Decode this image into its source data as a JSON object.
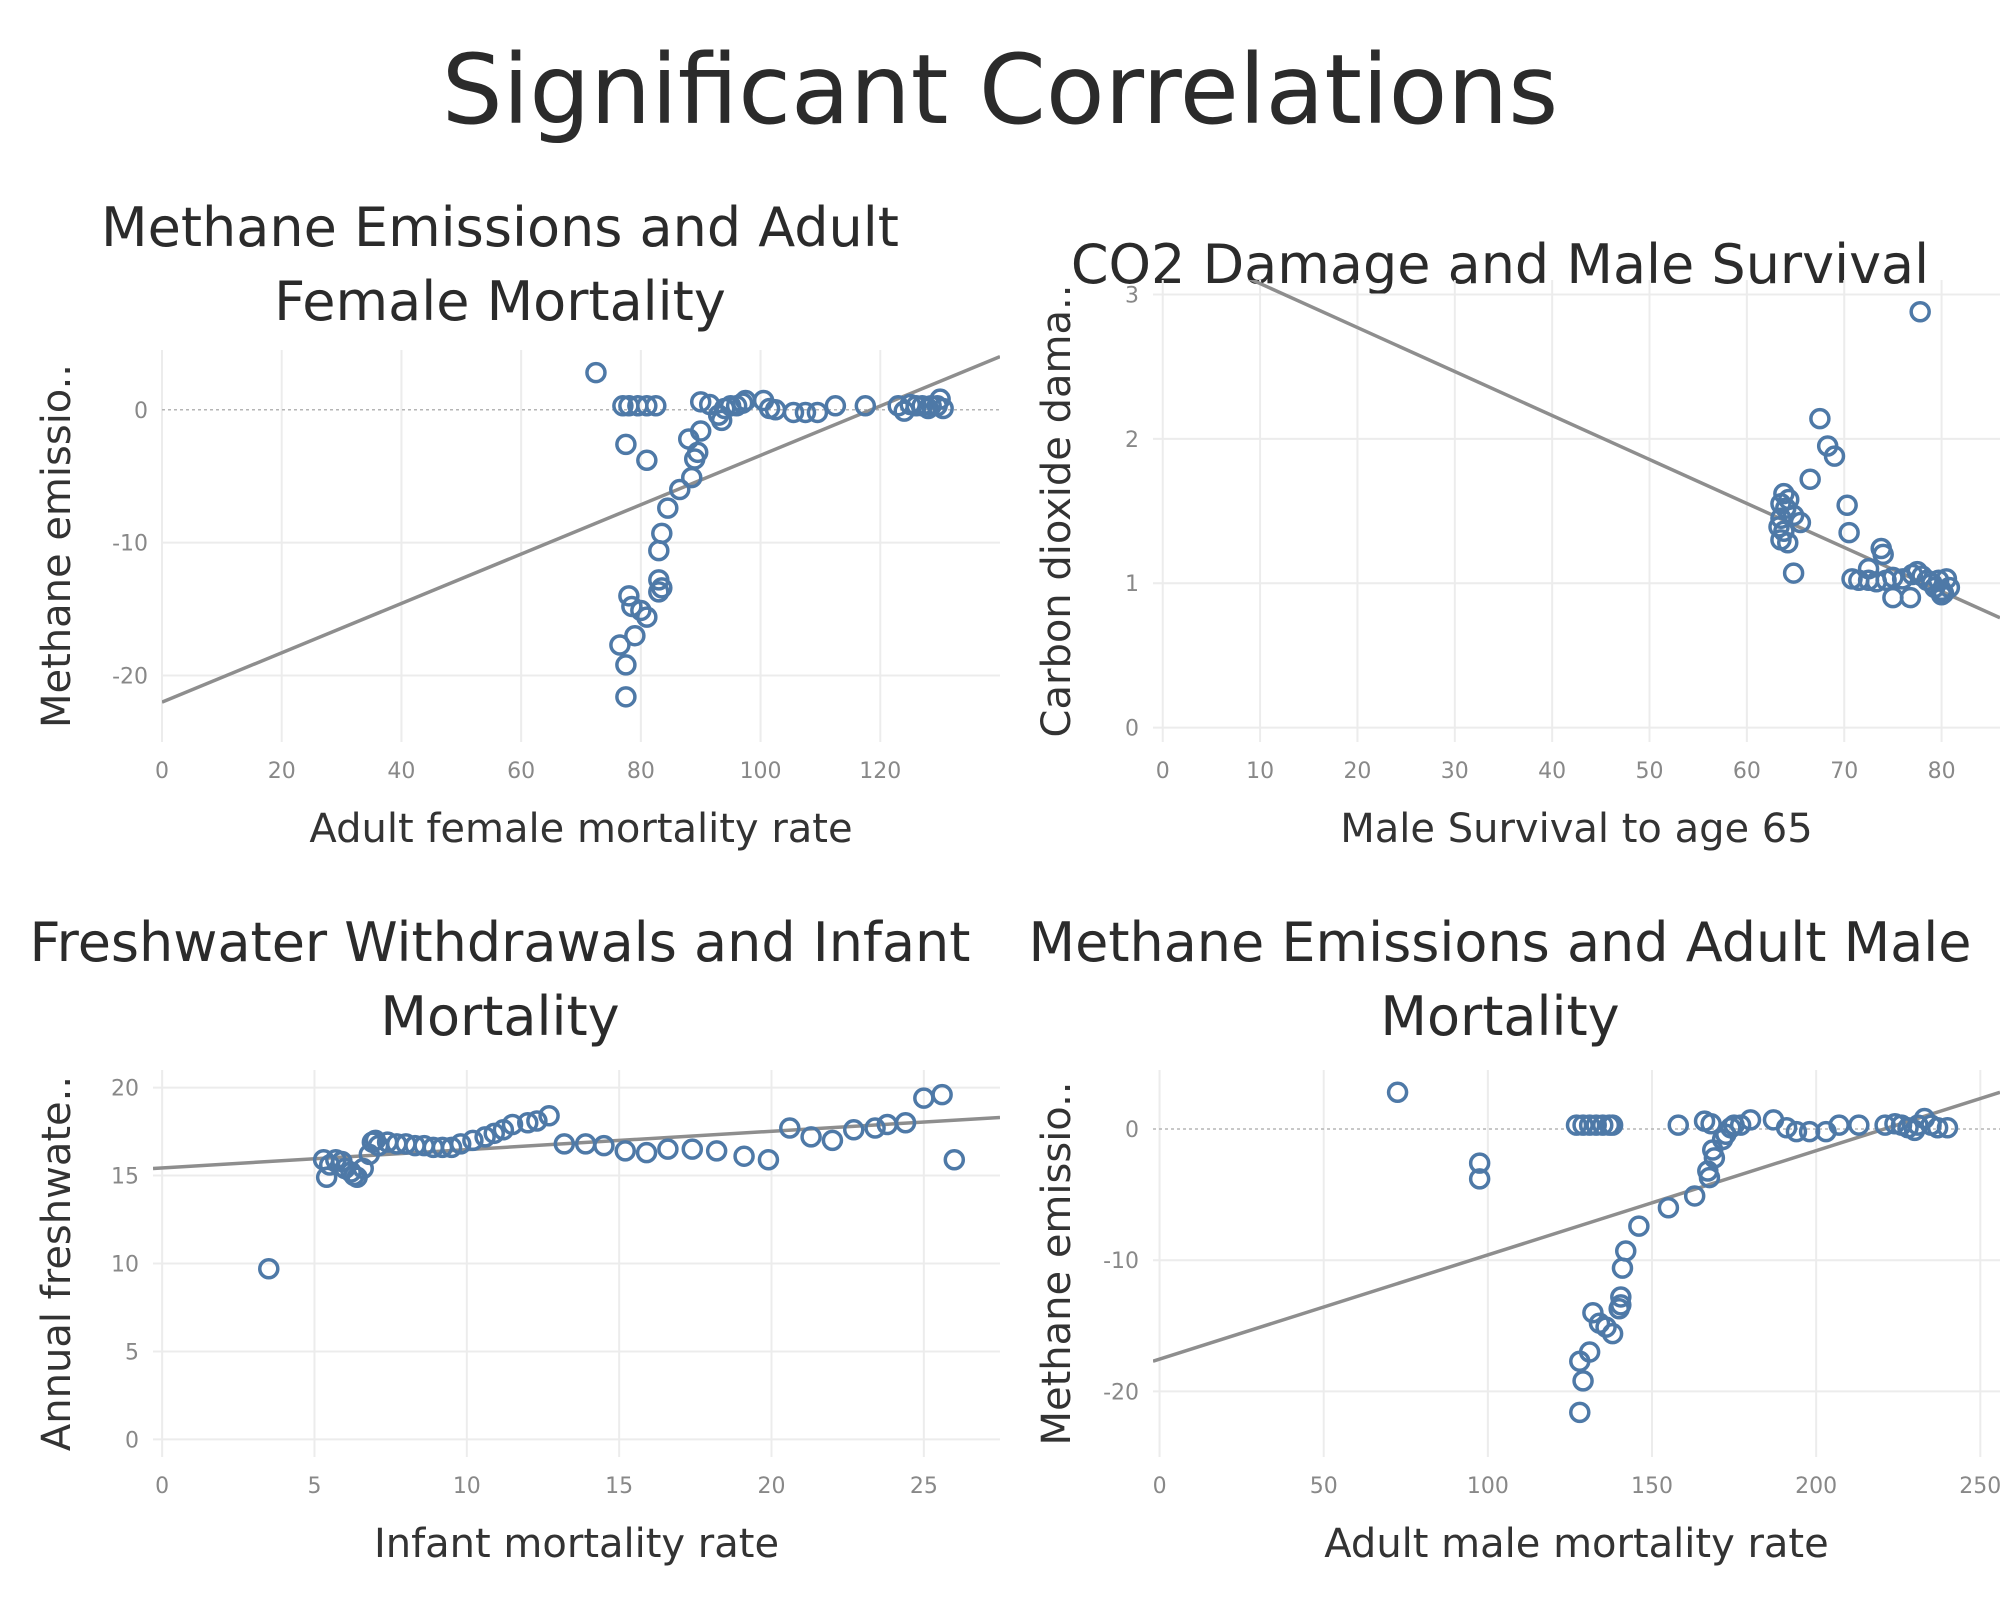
{
  "title": "Significant Correlations",
  "colors": {
    "point": "#4e79a7",
    "trend": "#8e8e8e",
    "grid": "#ececec",
    "text": "#333333"
  },
  "chart_data": [
    {
      "type": "scatter",
      "title": "Methane Emissions and Adult Female Mortality",
      "xlabel": "Adult female mortality rate",
      "ylabel": "Methane emissio..",
      "xlim": [
        0,
        140
      ],
      "ylim": [
        -25,
        4.5
      ],
      "xticks": [
        0,
        20,
        40,
        60,
        80,
        100,
        120
      ],
      "yticks": [
        0,
        -10,
        -20
      ],
      "zero_line": true,
      "trend": {
        "x": [
          0,
          140
        ],
        "y": [
          -22.0,
          4.0
        ]
      },
      "points": [
        [
          72.5,
          2.8
        ],
        [
          77.0,
          0.3
        ],
        [
          78.0,
          0.3
        ],
        [
          79.5,
          0.3
        ],
        [
          81.0,
          0.3
        ],
        [
          82.5,
          0.3
        ],
        [
          77.5,
          -2.6
        ],
        [
          81.0,
          -3.8
        ],
        [
          88.0,
          -2.2
        ],
        [
          89.0,
          -3.7
        ],
        [
          89.5,
          -3.2
        ],
        [
          90.0,
          -1.6
        ],
        [
          88.5,
          -5.1
        ],
        [
          86.5,
          -6.0
        ],
        [
          84.5,
          -7.4
        ],
        [
          83.5,
          -9.3
        ],
        [
          83.0,
          -10.6
        ],
        [
          83.0,
          -12.8
        ],
        [
          83.5,
          -13.4
        ],
        [
          83.0,
          -13.7
        ],
        [
          78.0,
          -14.0
        ],
        [
          78.5,
          -14.8
        ],
        [
          80.0,
          -15.1
        ],
        [
          81.0,
          -15.6
        ],
        [
          79.0,
          -17.0
        ],
        [
          76.5,
          -17.7
        ],
        [
          77.5,
          -19.2
        ],
        [
          77.5,
          -21.6
        ],
        [
          90.0,
          0.6
        ],
        [
          91.5,
          0.4
        ],
        [
          93.0,
          -0.4
        ],
        [
          93.5,
          -0.8
        ],
        [
          94.0,
          0.1
        ],
        [
          95.0,
          0.3
        ],
        [
          96.0,
          0.3
        ],
        [
          97.0,
          0.5
        ],
        [
          97.5,
          0.7
        ],
        [
          100.5,
          0.7
        ],
        [
          101.5,
          0.1
        ],
        [
          102.5,
          0.0
        ],
        [
          105.5,
          -0.2
        ],
        [
          107.5,
          -0.2
        ],
        [
          109.5,
          -0.2
        ],
        [
          112.5,
          0.3
        ],
        [
          117.5,
          0.3
        ],
        [
          123.0,
          0.3
        ],
        [
          124.0,
          -0.1
        ],
        [
          125.0,
          0.4
        ],
        [
          126.0,
          0.3
        ],
        [
          127.0,
          0.3
        ],
        [
          128.0,
          0.1
        ],
        [
          128.5,
          0.3
        ],
        [
          129.5,
          0.3
        ],
        [
          130.0,
          0.8
        ],
        [
          130.5,
          0.1
        ]
      ]
    },
    {
      "type": "scatter",
      "title": "CO2 Damage and Male Survival",
      "xlabel": "Male Survival to age 65",
      "ylabel": "Carbon dioxide dama..",
      "xlim": [
        -1,
        86
      ],
      "ylim": [
        -0.1,
        3.1
      ],
      "xticks": [
        0,
        10,
        20,
        30,
        40,
        50,
        60,
        70,
        80
      ],
      "yticks": [
        0,
        1,
        2,
        3
      ],
      "zero_line": false,
      "trend": {
        "x": [
          0,
          86
        ],
        "y": [
          3.38,
          0.76
        ]
      },
      "points": [
        [
          77.8,
          2.88
        ],
        [
          67.5,
          2.14
        ],
        [
          68.3,
          1.95
        ],
        [
          69.0,
          1.88
        ],
        [
          66.5,
          1.72
        ],
        [
          70.3,
          1.54
        ],
        [
          70.5,
          1.35
        ],
        [
          73.8,
          1.24
        ],
        [
          74.0,
          1.2
        ],
        [
          72.5,
          1.1
        ],
        [
          63.8,
          1.62
        ],
        [
          64.3,
          1.58
        ],
        [
          63.5,
          1.55
        ],
        [
          64.0,
          1.52
        ],
        [
          64.8,
          1.47
        ],
        [
          65.5,
          1.42
        ],
        [
          63.5,
          1.45
        ],
        [
          63.3,
          1.39
        ],
        [
          63.8,
          1.36
        ],
        [
          63.5,
          1.3
        ],
        [
          64.2,
          1.28
        ],
        [
          64.8,
          1.07
        ],
        [
          70.8,
          1.03
        ],
        [
          71.5,
          1.02
        ],
        [
          72.5,
          1.02
        ],
        [
          73.3,
          1.01
        ],
        [
          74.3,
          1.02
        ],
        [
          75.0,
          1.04
        ],
        [
          76.0,
          1.03
        ],
        [
          77.0,
          1.06
        ],
        [
          77.5,
          1.08
        ],
        [
          78.0,
          1.05
        ],
        [
          78.5,
          1.02
        ],
        [
          79.0,
          1.0
        ],
        [
          79.3,
          0.97
        ],
        [
          79.7,
          1.02
        ],
        [
          80.0,
          0.95
        ],
        [
          80.2,
          0.93
        ],
        [
          80.5,
          1.03
        ],
        [
          80.8,
          0.97
        ],
        [
          80.0,
          0.92
        ],
        [
          75.0,
          0.9
        ],
        [
          76.8,
          0.9
        ]
      ]
    },
    {
      "type": "scatter",
      "title": "Freshwater Withdrawals and Infant Mortality",
      "xlabel": "Infant mortality rate",
      "ylabel": "Annual freshwate..",
      "xlim": [
        -0.3,
        27.5
      ],
      "ylim": [
        -1.0,
        21.0
      ],
      "xticks": [
        0,
        5,
        10,
        15,
        20,
        25
      ],
      "yticks": [
        0,
        5,
        10,
        15,
        20
      ],
      "zero_line": false,
      "trend": {
        "x": [
          -0.3,
          27.5
        ],
        "y": [
          15.4,
          18.3
        ]
      },
      "points": [
        [
          3.5,
          9.7
        ],
        [
          5.3,
          15.9
        ],
        [
          5.5,
          15.6
        ],
        [
          5.7,
          15.9
        ],
        [
          5.9,
          15.8
        ],
        [
          6.0,
          15.4
        ],
        [
          6.2,
          15.2
        ],
        [
          6.3,
          15.0
        ],
        [
          5.4,
          14.9
        ],
        [
          6.4,
          14.9
        ],
        [
          6.6,
          15.4
        ],
        [
          6.8,
          16.2
        ],
        [
          6.9,
          16.9
        ],
        [
          7.1,
          16.7
        ],
        [
          7.0,
          17.0
        ],
        [
          7.4,
          16.9
        ],
        [
          7.7,
          16.8
        ],
        [
          8.0,
          16.8
        ],
        [
          8.3,
          16.7
        ],
        [
          8.6,
          16.7
        ],
        [
          8.9,
          16.6
        ],
        [
          9.2,
          16.6
        ],
        [
          9.5,
          16.6
        ],
        [
          9.8,
          16.8
        ],
        [
          10.2,
          17.0
        ],
        [
          10.6,
          17.2
        ],
        [
          10.9,
          17.4
        ],
        [
          11.2,
          17.6
        ],
        [
          11.5,
          17.9
        ],
        [
          12.0,
          18.0
        ],
        [
          12.3,
          18.1
        ],
        [
          12.7,
          18.4
        ],
        [
          13.2,
          16.8
        ],
        [
          13.9,
          16.8
        ],
        [
          14.5,
          16.7
        ],
        [
          15.2,
          16.4
        ],
        [
          15.9,
          16.3
        ],
        [
          16.6,
          16.5
        ],
        [
          17.4,
          16.5
        ],
        [
          18.2,
          16.4
        ],
        [
          19.1,
          16.1
        ],
        [
          19.9,
          15.9
        ],
        [
          20.6,
          17.7
        ],
        [
          21.3,
          17.2
        ],
        [
          22.0,
          17.0
        ],
        [
          22.7,
          17.6
        ],
        [
          23.4,
          17.7
        ],
        [
          23.8,
          17.9
        ],
        [
          24.4,
          18.0
        ],
        [
          25.0,
          19.4
        ],
        [
          25.6,
          19.6
        ],
        [
          26.0,
          15.9
        ]
      ]
    },
    {
      "type": "scatter",
      "title": "Methane Emissions and Adult Male Mortality",
      "xlabel": "Adult male mortality rate",
      "ylabel": "Methane emissio..",
      "xlim": [
        -2,
        256
      ],
      "ylim": [
        -25,
        4.5
      ],
      "xticks": [
        0,
        50,
        100,
        150,
        200,
        250
      ],
      "yticks": [
        0,
        -10,
        -20
      ],
      "zero_line": true,
      "trend": {
        "x": [
          -2,
          256
        ],
        "y": [
          -17.7,
          2.8
        ]
      },
      "points": [
        [
          72.5,
          2.8
        ],
        [
          97.5,
          -2.6
        ],
        [
          97.5,
          -3.8
        ],
        [
          127.0,
          0.3
        ],
        [
          129.0,
          0.3
        ],
        [
          131.0,
          0.3
        ],
        [
          133.0,
          0.3
        ],
        [
          135.0,
          0.3
        ],
        [
          137.0,
          0.3
        ],
        [
          138.0,
          0.3
        ],
        [
          128.0,
          -17.7
        ],
        [
          129.0,
          -19.2
        ],
        [
          128.0,
          -21.6
        ],
        [
          131.0,
          -17.0
        ],
        [
          132.0,
          -14.0
        ],
        [
          134.0,
          -14.8
        ],
        [
          136.0,
          -15.1
        ],
        [
          138.0,
          -15.6
        ],
        [
          140.0,
          -13.7
        ],
        [
          140.5,
          -12.8
        ],
        [
          140.5,
          -13.4
        ],
        [
          141.0,
          -10.6
        ],
        [
          142.0,
          -9.3
        ],
        [
          146.0,
          -7.4
        ],
        [
          155.0,
          -6.0
        ],
        [
          163.0,
          -5.1
        ],
        [
          167.0,
          -3.2
        ],
        [
          167.5,
          -3.7
        ],
        [
          168.5,
          -1.6
        ],
        [
          169.0,
          -2.2
        ],
        [
          171.5,
          -0.8
        ],
        [
          172.5,
          -0.4
        ],
        [
          166.0,
          0.6
        ],
        [
          168.0,
          0.4
        ],
        [
          158.0,
          0.3
        ],
        [
          174.0,
          0.1
        ],
        [
          175.0,
          0.3
        ],
        [
          177.0,
          0.3
        ],
        [
          180.0,
          0.7
        ],
        [
          187.0,
          0.7
        ],
        [
          191.0,
          0.1
        ],
        [
          194.0,
          -0.2
        ],
        [
          198.0,
          -0.2
        ],
        [
          203.0,
          -0.2
        ],
        [
          207.0,
          0.3
        ],
        [
          213.0,
          0.3
        ],
        [
          221.0,
          0.3
        ],
        [
          224.0,
          0.4
        ],
        [
          226.0,
          0.3
        ],
        [
          228.0,
          0.1
        ],
        [
          230.0,
          -0.1
        ],
        [
          231.0,
          0.3
        ],
        [
          233.0,
          0.8
        ],
        [
          235.0,
          0.3
        ],
        [
          237.0,
          0.1
        ],
        [
          240.0,
          0.1
        ]
      ]
    }
  ]
}
